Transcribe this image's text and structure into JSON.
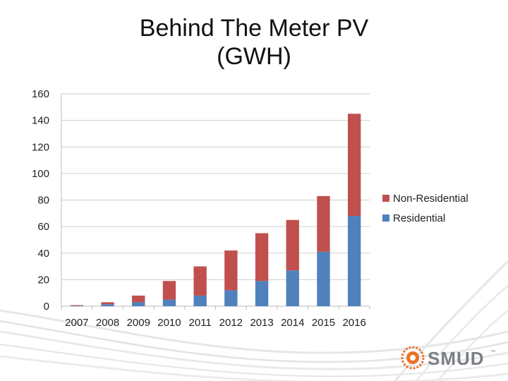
{
  "title_lines": [
    "Behind The Meter PV",
    "(GWH)"
  ],
  "chart_data": {
    "type": "bar",
    "stacked": true,
    "title": "Behind The Meter PV (GWH)",
    "categories": [
      "2007",
      "2008",
      "2009",
      "2010",
      "2011",
      "2012",
      "2013",
      "2014",
      "2015",
      "2016"
    ],
    "series": [
      {
        "name": "Residential",
        "color": "#4f81bd",
        "values": [
          0.3,
          1.5,
          3,
          5,
          8,
          12,
          19,
          27,
          41,
          68
        ]
      },
      {
        "name": "Non-Residential",
        "color": "#c0504d",
        "values": [
          0.5,
          1.5,
          5,
          14,
          22,
          30,
          36,
          38,
          42,
          77
        ]
      }
    ],
    "ylim": [
      0,
      160
    ],
    "yticks": [
      0,
      20,
      40,
      60,
      80,
      100,
      120,
      140,
      160
    ],
    "grid": true,
    "legend_position": "right"
  },
  "logo": {
    "text": "SMUD",
    "tm": "™",
    "color": "#e8732a"
  }
}
